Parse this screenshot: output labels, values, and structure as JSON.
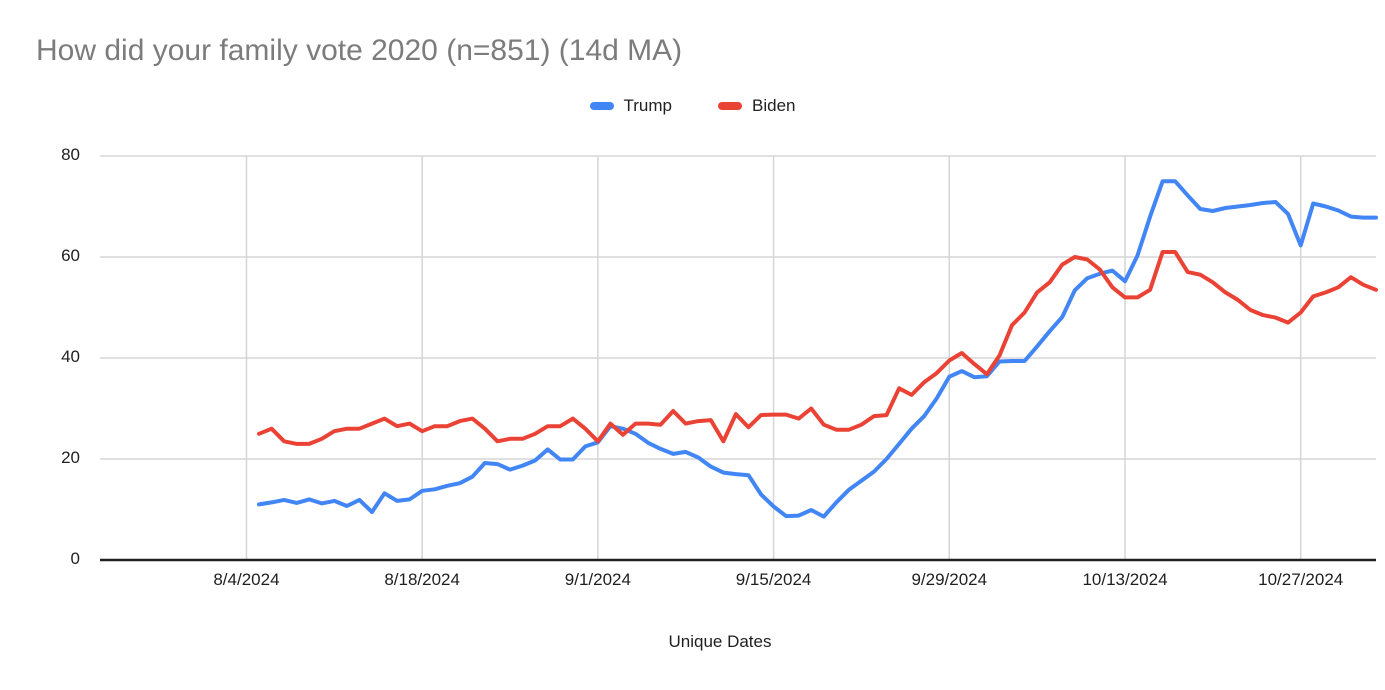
{
  "chart_data": {
    "type": "line",
    "title": "How did your family vote 2020 (n=851) (14d MA)",
    "xlabel": "Unique Dates",
    "ylabel": "",
    "ylim": [
      0,
      80
    ],
    "y_ticks": [
      0,
      20,
      40,
      60,
      80
    ],
    "x_tick_labels": [
      "8/4/2024",
      "8/18/2024",
      "9/1/2024",
      "9/15/2024",
      "9/29/2024",
      "10/13/2024",
      "10/27/2024"
    ],
    "x_tick_day_offsets": [
      -1,
      13,
      27,
      41,
      55,
      69,
      83
    ],
    "grid": true,
    "legend_position": "top",
    "background_color": "#ffffff",
    "gridline_color": "#d5d5d5",
    "axis_line_color": "#212121",
    "title_color": "#7c7c7c",
    "dates": [
      "8/5/2024",
      "8/6/2024",
      "8/7/2024",
      "8/8/2024",
      "8/9/2024",
      "8/10/2024",
      "8/11/2024",
      "8/12/2024",
      "8/13/2024",
      "8/14/2024",
      "8/15/2024",
      "8/16/2024",
      "8/17/2024",
      "8/18/2024",
      "8/19/2024",
      "8/20/2024",
      "8/21/2024",
      "8/22/2024",
      "8/23/2024",
      "8/24/2024",
      "8/25/2024",
      "8/26/2024",
      "8/27/2024",
      "8/28/2024",
      "8/29/2024",
      "8/30/2024",
      "8/31/2024",
      "9/1/2024",
      "9/2/2024",
      "9/3/2024",
      "9/4/2024",
      "9/5/2024",
      "9/6/2024",
      "9/7/2024",
      "9/8/2024",
      "9/9/2024",
      "9/10/2024",
      "9/11/2024",
      "9/12/2024",
      "9/13/2024",
      "9/14/2024",
      "9/15/2024",
      "9/16/2024",
      "9/17/2024",
      "9/18/2024",
      "9/19/2024",
      "9/20/2024",
      "9/21/2024",
      "9/22/2024",
      "9/23/2024",
      "9/24/2024",
      "9/25/2024",
      "9/26/2024",
      "9/27/2024",
      "9/28/2024",
      "9/29/2024",
      "9/30/2024",
      "10/1/2024",
      "10/2/2024",
      "10/3/2024",
      "10/4/2024",
      "10/5/2024",
      "10/6/2024",
      "10/7/2024",
      "10/8/2024",
      "10/9/2024",
      "10/10/2024",
      "10/11/2024",
      "10/12/2024",
      "10/13/2024",
      "10/14/2024",
      "10/15/2024",
      "10/16/2024",
      "10/17/2024",
      "10/18/2024",
      "10/19/2024",
      "10/20/2024",
      "10/21/2024",
      "10/22/2024",
      "10/23/2024",
      "10/24/2024",
      "10/25/2024",
      "10/26/2024",
      "10/27/2024",
      "10/28/2024",
      "10/29/2024",
      "10/30/2024",
      "10/31/2024",
      "11/1/2024",
      "11/2/2024"
    ],
    "series": [
      {
        "name": "Trump",
        "color": "#4285f4",
        "values": [
          11,
          11.4,
          11.9,
          11.3,
          12,
          11.2,
          11.7,
          10.7,
          11.9,
          9.5,
          13.2,
          11.7,
          12,
          13.7,
          14,
          14.7,
          15.2,
          16.5,
          19.2,
          19,
          17.9,
          18.7,
          19.7,
          21.9,
          19.9,
          19.9,
          22.5,
          23.3,
          26.5,
          26,
          25,
          23.2,
          22,
          21,
          21.4,
          20.3,
          18.5,
          17.3,
          17,
          16.8,
          13,
          10.6,
          8.7,
          8.8,
          9.9,
          8.6,
          11.4,
          13.9,
          15.7,
          17.5,
          20,
          23,
          26,
          28.5,
          32,
          36.3,
          37.4,
          36.2,
          36.4,
          39.3,
          39.4,
          39.4,
          42.3,
          45.3,
          48.1,
          53.4,
          55.8,
          56.7,
          57.3,
          55.2,
          60.3,
          68,
          75,
          75,
          72.2,
          69.5,
          69.1,
          69.7,
          70,
          70.3,
          70.7,
          70.9,
          68.5,
          62.3,
          70.6,
          70,
          69.2,
          68,
          67.8,
          67.8
        ]
      },
      {
        "name": "Biden",
        "color": "#ea4335",
        "values": [
          25,
          26,
          23.5,
          23,
          23,
          24,
          25.5,
          26,
          26,
          27,
          28,
          26.5,
          27,
          25.5,
          26.5,
          26.5,
          27.5,
          28,
          26,
          23.5,
          24,
          24,
          25,
          26.5,
          26.5,
          28,
          26,
          23.5,
          27,
          24.8,
          27,
          27,
          26.8,
          29.5,
          27,
          27.5,
          27.7,
          23.5,
          28.9,
          26.3,
          28.7,
          28.8,
          28.8,
          28,
          30,
          26.8,
          25.8,
          25.8,
          26.8,
          28.5,
          28.7,
          34,
          32.7,
          35.2,
          37,
          39.5,
          41,
          38.8,
          36.8,
          40.5,
          46.5,
          49,
          53,
          55,
          58.5,
          60,
          59.5,
          57.5,
          54,
          52,
          52,
          53.5,
          61,
          61,
          57,
          56.5,
          55,
          53,
          51.5,
          49.5,
          48.5,
          48,
          47,
          49,
          52.2,
          53,
          54,
          56,
          54.5,
          53.5
        ]
      }
    ]
  }
}
